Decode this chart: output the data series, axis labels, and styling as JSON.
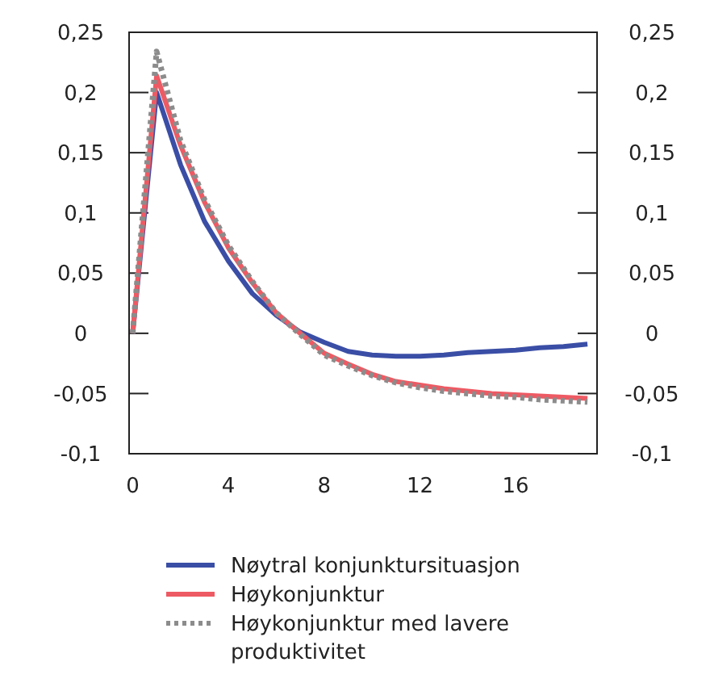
{
  "chart_data": {
    "type": "line",
    "x": [
      0,
      1,
      2,
      3,
      4,
      5,
      6,
      7,
      8,
      9,
      10,
      11,
      12,
      13,
      14,
      15,
      16,
      17,
      18,
      19
    ],
    "xlim": [
      -0.15,
      19.4
    ],
    "xticks": [
      0,
      4,
      8,
      12,
      16
    ],
    "ylim": [
      -0.1,
      0.25
    ],
    "yticks": [
      {
        "value": -0.1,
        "label": "-0,1"
      },
      {
        "value": -0.05,
        "label": "-0,05"
      },
      {
        "value": 0,
        "label": "0"
      },
      {
        "value": 0.05,
        "label": "0,05"
      },
      {
        "value": 0.1,
        "label": "0,1"
      },
      {
        "value": 0.15,
        "label": "0,15"
      },
      {
        "value": 0.2,
        "label": "0,2"
      },
      {
        "value": 0.25,
        "label": "0,25"
      }
    ],
    "y2lim": [
      -0.1,
      0.25
    ],
    "y2ticks": [
      {
        "value": -0.1,
        "label": "-0,1"
      },
      {
        "value": -0.05,
        "label": "-0,05"
      },
      {
        "value": 0,
        "label": "0"
      },
      {
        "value": 0.05,
        "label": "0,05"
      },
      {
        "value": 0.1,
        "label": "0,1"
      },
      {
        "value": 0.15,
        "label": "0,15"
      },
      {
        "value": 0.2,
        "label": "0,2"
      },
      {
        "value": 0.25,
        "label": "0,25"
      }
    ],
    "grid": false,
    "legend": "bottom",
    "series": [
      {
        "name": "Nøytral konjunktursituasjon",
        "color": "#3a4ea6",
        "line_style": "solid",
        "values": [
          0,
          0.2,
          0.14,
          0.093,
          0.06,
          0.033,
          0.015,
          0.001,
          -0.0075,
          -0.015,
          -0.018,
          -0.019,
          -0.019,
          -0.018,
          -0.016,
          -0.015,
          -0.014,
          -0.012,
          -0.011,
          -0.009
        ]
      },
      {
        "name": "Høykonjunktur",
        "color": "#ee5a63",
        "line_style": "solid",
        "values": [
          0,
          0.214,
          0.156,
          0.109,
          0.071,
          0.042,
          0.017,
          0,
          -0.0165,
          -0.0255,
          -0.034,
          -0.04,
          -0.043,
          -0.046,
          -0.048,
          -0.05,
          -0.051,
          -0.052,
          -0.053,
          -0.054
        ]
      },
      {
        "name": "Høykonjunktur med lavere produktivitet",
        "color": "#8c8c8c",
        "line_style": "dotted",
        "values": [
          0,
          0.234,
          0.16,
          0.111,
          0.073,
          0.043,
          0.017,
          -0.001,
          -0.018,
          -0.027,
          -0.035,
          -0.041,
          -0.045,
          -0.048,
          -0.05,
          -0.052,
          -0.053,
          -0.055,
          -0.056,
          -0.057
        ]
      }
    ]
  }
}
